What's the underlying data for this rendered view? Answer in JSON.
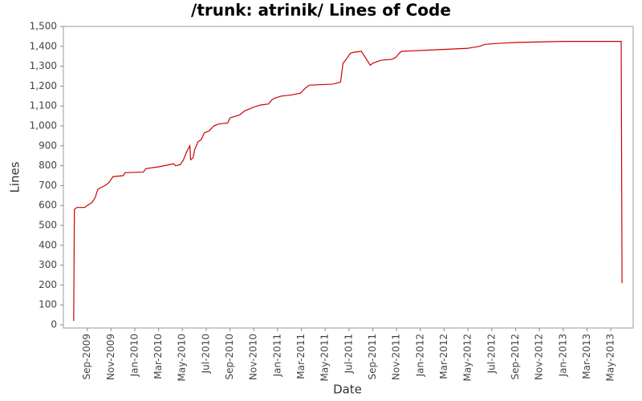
{
  "chart_data": {
    "type": "line",
    "title": "/trunk: atrinik/ Lines of Code",
    "x_label": "Date",
    "y_label": "Lines",
    "x": [
      2009.572,
      2009.577,
      2009.594,
      2009.65,
      2009.667,
      2009.701,
      2009.723,
      2009.74,
      2009.762,
      2009.791,
      2009.819,
      2009.847,
      2009.92,
      2009.931,
      2010.06,
      2010.077,
      2010.172,
      2010.24,
      2010.273,
      2010.285,
      2010.318,
      2010.341,
      2010.363,
      2010.386,
      2010.391,
      2010.408,
      2010.419,
      2010.442,
      2010.464,
      2010.487,
      2010.52,
      2010.554,
      2010.588,
      2010.65,
      2010.666,
      2010.689,
      2010.734,
      2010.768,
      2010.801,
      2010.835,
      2010.88,
      2010.936,
      2010.958,
      2010.981,
      2011.026,
      2011.093,
      2011.161,
      2011.194,
      2011.222,
      2011.385,
      2011.441,
      2011.458,
      2011.486,
      2011.509,
      2011.531,
      2011.587,
      2011.649,
      2011.666,
      2011.722,
      2011.801,
      2011.829,
      2011.851,
      2011.868,
      2012.025,
      2012.328,
      2012.413,
      2012.452,
      2012.542,
      2012.682,
      2013.002,
      2013.406,
      2013.412
    ],
    "series": [
      {
        "name": "Lines",
        "color": "#cc0000",
        "values": [
          20,
          580,
          590,
          590,
          600,
          615,
          640,
          680,
          690,
          700,
          715,
          745,
          750,
          765,
          768,
          785,
          795,
          805,
          810,
          800,
          805,
          830,
          870,
          900,
          830,
          840,
          880,
          920,
          930,
          965,
          975,
          1000,
          1010,
          1015,
          1040,
          1045,
          1055,
          1075,
          1085,
          1095,
          1105,
          1110,
          1130,
          1140,
          1150,
          1155,
          1165,
          1190,
          1205,
          1210,
          1220,
          1315,
          1340,
          1365,
          1370,
          1375,
          1305,
          1315,
          1330,
          1335,
          1345,
          1365,
          1375,
          1380,
          1390,
          1400,
          1410,
          1415,
          1420,
          1425,
          1425,
          210
        ]
      }
    ],
    "xlim": [
      2009.5,
      2013.49
    ],
    "xticks": [
      {
        "value": 2009.667,
        "label": "Sep-2009"
      },
      {
        "value": 2009.833,
        "label": "Nov-2009"
      },
      {
        "value": 2010.0,
        "label": "Jan-2010"
      },
      {
        "value": 2010.167,
        "label": "Mar-2010"
      },
      {
        "value": 2010.333,
        "label": "May-2010"
      },
      {
        "value": 2010.5,
        "label": "Jul-2010"
      },
      {
        "value": 2010.667,
        "label": "Sep-2010"
      },
      {
        "value": 2010.833,
        "label": "Nov-2010"
      },
      {
        "value": 2011.0,
        "label": "Jan-2011"
      },
      {
        "value": 2011.167,
        "label": "Mar-2011"
      },
      {
        "value": 2011.333,
        "label": "May-2011"
      },
      {
        "value": 2011.5,
        "label": "Jul-2011"
      },
      {
        "value": 2011.667,
        "label": "Sep-2011"
      },
      {
        "value": 2011.833,
        "label": "Nov-2011"
      },
      {
        "value": 2012.0,
        "label": "Jan-2012"
      },
      {
        "value": 2012.167,
        "label": "Mar-2012"
      },
      {
        "value": 2012.333,
        "label": "May-2012"
      },
      {
        "value": 2012.5,
        "label": "Jul-2012"
      },
      {
        "value": 2012.667,
        "label": "Sep-2012"
      },
      {
        "value": 2012.833,
        "label": "Nov-2012"
      },
      {
        "value": 2013.0,
        "label": "Jan-2013"
      },
      {
        "value": 2013.167,
        "label": "Mar-2013"
      },
      {
        "value": 2013.333,
        "label": "May-2013"
      }
    ],
    "ylim": [
      -16,
      1500
    ],
    "yticks": [
      0,
      100,
      200,
      300,
      400,
      500,
      600,
      700,
      800,
      900,
      {
        "value": 1000,
        "label": "1,000"
      },
      {
        "value": 1100,
        "label": "1,100"
      },
      {
        "value": 1200,
        "label": "1,200"
      },
      {
        "value": 1300,
        "label": "1,300"
      },
      {
        "value": 1400,
        "label": "1,400"
      },
      {
        "value": 1500,
        "label": "1,500"
      }
    ],
    "grid": false
  }
}
